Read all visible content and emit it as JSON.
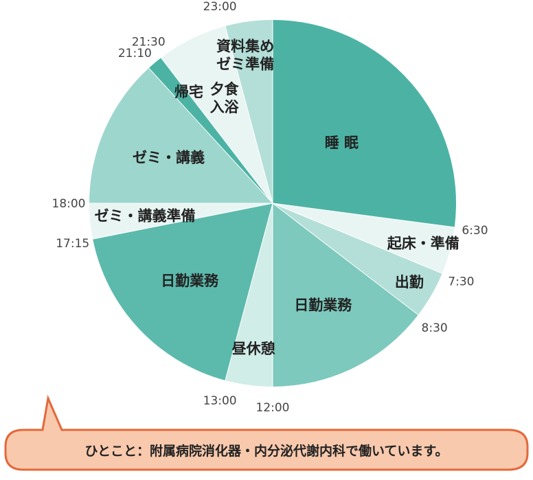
{
  "chart_data": {
    "type": "pie",
    "title": "",
    "start_time": "0:00",
    "slices": [
      {
        "label": "睡 眠",
        "start": "0:00",
        "end": "6:30",
        "hours": 6.5,
        "color": "#4cb3a4"
      },
      {
        "label": "起床・準備",
        "start": "6:30",
        "end": "7:30",
        "hours": 1.0,
        "color": "#e9f5f3"
      },
      {
        "label": "出勤",
        "start": "7:30",
        "end": "8:30",
        "hours": 1.0,
        "color": "#b3dfd8"
      },
      {
        "label": "日勤業務",
        "start": "8:30",
        "end": "12:00",
        "hours": 3.5,
        "color": "#7dc9bd"
      },
      {
        "label": "昼休憩",
        "start": "12:00",
        "end": "13:00",
        "hours": 1.0,
        "color": "#d1ede8"
      },
      {
        "label": "日勤業務",
        "start": "13:00",
        "end": "17:15",
        "hours": 4.25,
        "color": "#5cbaac"
      },
      {
        "label": "ゼミ・講義準備",
        "start": "17:15",
        "end": "18:00",
        "hours": 0.75,
        "color": "#e9f5f3"
      },
      {
        "label": "ゼミ・講義",
        "start": "18:00",
        "end": "21:10",
        "hours": 3.1667,
        "color": "#9dd6cd"
      },
      {
        "label": "帰宅",
        "start": "21:10",
        "end": "21:30",
        "hours": 0.3333,
        "color": "#4cb3a4"
      },
      {
        "label": "夕食\n入浴",
        "start": "21:30",
        "end": "23:00",
        "hours": 1.5,
        "color": "#e9f5f3"
      },
      {
        "label": "資料集め\nゼミ準備",
        "start": "23:00",
        "end": "24:00",
        "hours": 1.0,
        "color": "#b3dfd8"
      }
    ],
    "time_labels": [
      "6:30",
      "7:30",
      "8:30",
      "12:00",
      "13:00",
      "17:15",
      "18:00",
      "21:10",
      "21:30",
      "23:00"
    ]
  },
  "comment": {
    "text": "ひとこと：附属病院消化器・内分泌代謝内科で働いています。",
    "border_color": "#e4683a",
    "fill_color": "#f8c9ad"
  }
}
